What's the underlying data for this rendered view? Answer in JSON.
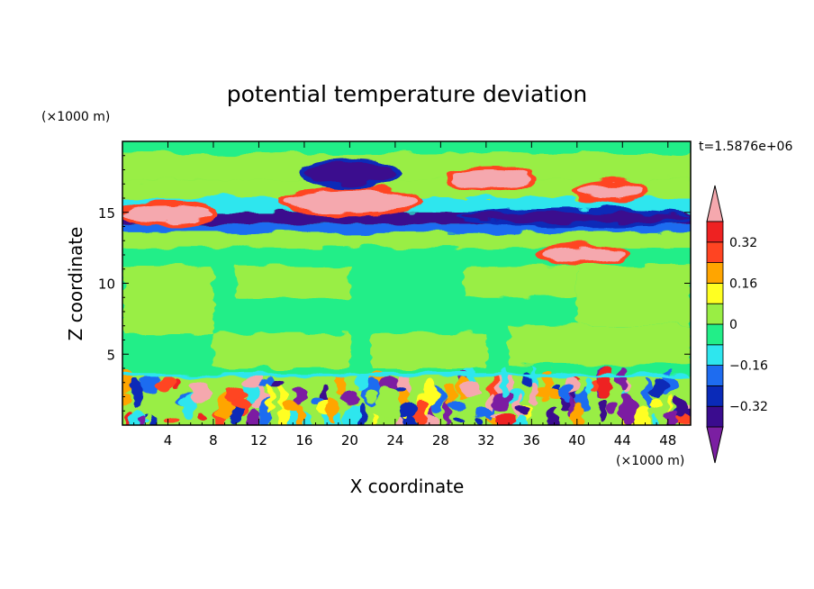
{
  "chart_data": {
    "type": "heatmap",
    "title": "potential temperature deviation",
    "xlabel": "X coordinate",
    "ylabel": "Z coordinate",
    "x_unit": "(×1000 m)",
    "y_unit": "(×1000 m)",
    "time_label": "t=1.5876e+06",
    "xlim": [
      0,
      50
    ],
    "ylim": [
      0,
      20
    ],
    "x_ticks": [
      4,
      8,
      12,
      16,
      20,
      24,
      28,
      32,
      36,
      40,
      44,
      48
    ],
    "y_ticks": [
      5,
      10,
      15
    ],
    "colorbar": {
      "levels": [
        -0.4,
        -0.32,
        -0.24,
        -0.16,
        -0.08,
        0,
        0.08,
        0.16,
        0.24,
        0.32,
        0.4
      ],
      "tick_labels": [
        "0.32",
        "0.16",
        "0",
        "−0.16",
        "−0.32"
      ],
      "tick_values": [
        0.32,
        0.16,
        0,
        -0.16,
        -0.32
      ],
      "colors_low_to_high": [
        "#7b1fa2",
        "#3a0c8e",
        "#0a2ab8",
        "#1e6cf0",
        "#2ee6ee",
        "#22ee88",
        "#99ee44",
        "#ffff22",
        "#ffa500",
        "#ff4422",
        "#ee2222",
        "#f5a8ae"
      ],
      "extend": "both"
    },
    "field": {
      "description": "Background near zero (green) with horizontal layers: upper tropospheric bands of alternating negative (purple/blue) and positive (red/pink) anomalies between z≈12 and z≈19 km; mid levels mostly 0 to 0.08 with lighter patches; turbulent boundary layer below z≈3.5 km with mixed strong positive and negative cells.",
      "regions": [
        {
          "x": [
            0,
            50
          ],
          "z": [
            12.5,
            13.6
          ],
          "value": 0.04
        },
        {
          "x": [
            0,
            50
          ],
          "z": [
            13.6,
            14.2
          ],
          "value": -0.2
        },
        {
          "x": [
            0,
            50
          ],
          "z": [
            14.2,
            15.0
          ],
          "value": -0.36
        },
        {
          "x": [
            0,
            50
          ],
          "z": [
            15.0,
            16.0
          ],
          "value": -0.14
        },
        {
          "x": [
            0,
            50
          ],
          "z": [
            16.0,
            17.3
          ],
          "value": 0.06
        },
        {
          "x": [
            0,
            50
          ],
          "z": [
            17.3,
            19.2
          ],
          "value": 0.05
        },
        {
          "x": [
            14,
            26
          ],
          "z": [
            15.0,
            16.5
          ],
          "value": 0.45
        },
        {
          "x": [
            29,
            36
          ],
          "z": [
            16.8,
            18.0
          ],
          "value": 0.45
        },
        {
          "x": [
            0,
            8
          ],
          "z": [
            14.3,
            15.5
          ],
          "value": 0.45
        },
        {
          "x": [
            30,
            50
          ],
          "z": [
            14.3,
            15.0
          ],
          "value": -0.38
        },
        {
          "x": [
            16,
            24
          ],
          "z": [
            17.0,
            18.5
          ],
          "value": -0.38
        },
        {
          "x": [
            40,
            46
          ],
          "z": [
            16.0,
            17.0
          ],
          "value": 0.45
        },
        {
          "x": [
            37,
            44
          ],
          "z": [
            11.5,
            12.5
          ],
          "value": 0.45
        },
        {
          "x": [
            0,
            50
          ],
          "z": [
            0.0,
            3.6
          ],
          "value": "mixed"
        }
      ]
    }
  }
}
